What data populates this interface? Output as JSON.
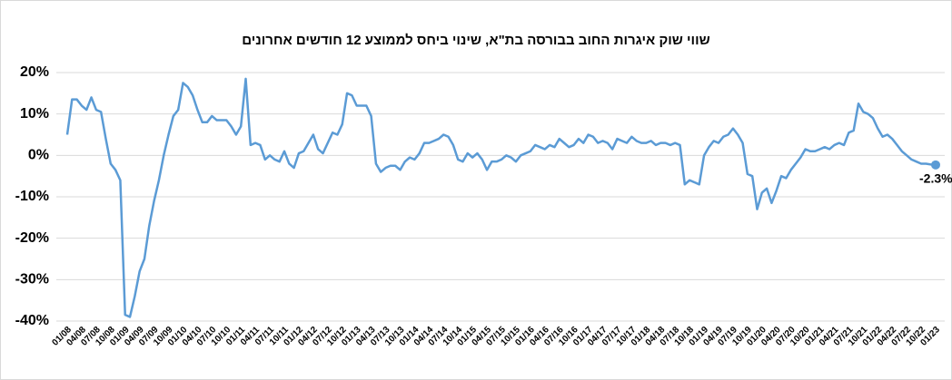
{
  "chart_data": {
    "type": "line",
    "title": "שווי שוק איגרות החוב בבורסה בת\"א, שינוי ביחס לממוצע 12 חודשים אחרונים",
    "categories": [
      "01/08",
      null,
      null,
      "04/08",
      null,
      null,
      "07/08",
      null,
      null,
      "10/08",
      null,
      null,
      "01/09",
      null,
      null,
      "04/09",
      null,
      null,
      "07/09",
      null,
      null,
      "10/09",
      null,
      null,
      "01/10",
      null,
      null,
      "04/10",
      null,
      null,
      "07/10",
      null,
      null,
      "10/10",
      null,
      null,
      "01/11",
      null,
      null,
      "04/11",
      null,
      null,
      "07/11",
      null,
      null,
      "10/11",
      null,
      null,
      "01/12",
      null,
      null,
      "04/12",
      null,
      null,
      "07/12",
      null,
      null,
      "10/12",
      null,
      null,
      "01/13",
      null,
      null,
      "04/13",
      null,
      null,
      "07/13",
      null,
      null,
      "10/13",
      null,
      null,
      "01/14",
      null,
      null,
      "04/14",
      null,
      null,
      "07/14",
      null,
      null,
      "10/14",
      null,
      null,
      "01/15",
      null,
      null,
      "04/15",
      null,
      null,
      "07/15",
      null,
      null,
      "10/15",
      null,
      null,
      "01/16",
      null,
      null,
      "04/16",
      null,
      null,
      "07/16",
      null,
      null,
      "10/16",
      null,
      null,
      "01/17",
      null,
      null,
      "04/17",
      null,
      null,
      "07/17",
      null,
      null,
      "10/17",
      null,
      null,
      "01/18",
      null,
      null,
      "04/18",
      null,
      null,
      "07/18",
      null,
      null,
      "10/18",
      null,
      null,
      "01/19",
      null,
      null,
      "04/19",
      null,
      null,
      "07/19",
      null,
      null,
      "10/19",
      null,
      null,
      "01/20",
      null,
      null,
      "04/20",
      null,
      null,
      "07/20",
      null,
      null,
      "10/20",
      null,
      null,
      "01/21",
      null,
      null,
      "04/21",
      null,
      null,
      "07/21",
      null,
      null,
      "10/21",
      null,
      null,
      "01/22",
      null,
      null,
      "04/22",
      null,
      null,
      "07/22",
      null,
      null,
      "10/22",
      null,
      null,
      "01/23"
    ],
    "values": [
      5,
      13.5,
      13.5,
      12,
      11,
      14,
      11,
      10.5,
      4,
      -2,
      -3.5,
      -6,
      -38.5,
      -39,
      -34,
      -28,
      -25,
      -17,
      -11,
      -6,
      0,
      5,
      9.5,
      11,
      17.5,
      16.5,
      14.5,
      11,
      8,
      8,
      9.5,
      8.5,
      8.5,
      8.5,
      7,
      5,
      7,
      18.5,
      2.5,
      3,
      2.5,
      -1,
      0,
      -1,
      -1.5,
      1,
      -2,
      -3,
      0.5,
      1,
      3,
      5,
      1.5,
      0.5,
      3,
      5.5,
      5,
      7.5,
      15,
      14.5,
      12,
      12,
      12,
      9.5,
      -2,
      -4,
      -3,
      -2.5,
      -2.5,
      -3.5,
      -1.5,
      -0.5,
      -1,
      0.5,
      3,
      3,
      3.5,
      4,
      5,
      4.5,
      2.5,
      -1,
      -1.5,
      0.5,
      -0.5,
      0.5,
      -1,
      -3.5,
      -1.5,
      -1.5,
      -1,
      0,
      -0.5,
      -1.5,
      0,
      0.5,
      1,
      2.5,
      2,
      1.5,
      2.5,
      2,
      4,
      3,
      2,
      2.5,
      4,
      3,
      5,
      4.5,
      3,
      3.5,
      3,
      1.5,
      4,
      3.5,
      3,
      4.5,
      3.5,
      3,
      3,
      3.5,
      2.5,
      3,
      3,
      2.5,
      3,
      2.5,
      -7,
      -6,
      -6.5,
      -7,
      0,
      2,
      3.5,
      3,
      4.5,
      5,
      6.5,
      5,
      3,
      -4.5,
      -5,
      -13,
      -9,
      -8,
      -11.5,
      -8.5,
      -5,
      -5.5,
      -3.5,
      -2,
      -0.5,
      1.5,
      1,
      1,
      1.5,
      2,
      1.5,
      2.5,
      3,
      2.5,
      5.5,
      6,
      12.5,
      10.5,
      10,
      9,
      6.5,
      4.5,
      5,
      4,
      2.5,
      1,
      0,
      -1,
      -1.5,
      -2,
      -2,
      -2.2,
      -2.3
    ],
    "value_labels": [
      null,
      null,
      null,
      null,
      null,
      null,
      null,
      null,
      null,
      null,
      null,
      null,
      null,
      null,
      null,
      null,
      null,
      null,
      null,
      null,
      null,
      null,
      null,
      null,
      null,
      null,
      null,
      null,
      null,
      null,
      null,
      null,
      null,
      null,
      null,
      null,
      null,
      null,
      null,
      null,
      null,
      null,
      null,
      null,
      null,
      null,
      null,
      null,
      null,
      null,
      null,
      null,
      null,
      null,
      null,
      null,
      null,
      null,
      null,
      null,
      null,
      null,
      null,
      null,
      null,
      null,
      null,
      null,
      null,
      null,
      null,
      null,
      null,
      null,
      null,
      null,
      null,
      null,
      null,
      null,
      null,
      null,
      null,
      null,
      null,
      null,
      null,
      null,
      null,
      null,
      null,
      null,
      null,
      null,
      null,
      null,
      null,
      null,
      null,
      null,
      null,
      null,
      null,
      null,
      null,
      null,
      null,
      null,
      null,
      null,
      null,
      null,
      null,
      null,
      null,
      null,
      null,
      null,
      null,
      null,
      null,
      null,
      null,
      null,
      null,
      null,
      null,
      null,
      null,
      null,
      null,
      null,
      null,
      null,
      null,
      null,
      null,
      null,
      null,
      null,
      null,
      null,
      null,
      null,
      null,
      null,
      null,
      null,
      null,
      null,
      null,
      null,
      null,
      null,
      null,
      null,
      null,
      null,
      null,
      null,
      null,
      null,
      null,
      null,
      null,
      null,
      null,
      null,
      null,
      null,
      null,
      null,
      null,
      null,
      null,
      null,
      null,
      null,
      null,
      null,
      "-2.3%"
    ],
    "color": "#5b9bd5",
    "label_color": "#2e75b6",
    "ylim": [
      -40,
      20
    ],
    "yticks": [
      {
        "value": -40,
        "label": "-40%"
      },
      {
        "value": -30,
        "label": "-30%"
      },
      {
        "value": -20,
        "label": "-20%"
      },
      {
        "value": -10,
        "label": "-10%"
      },
      {
        "value": 0,
        "label": "0%"
      },
      {
        "value": 10,
        "label": "10%"
      },
      {
        "value": 20,
        "label": "20%"
      }
    ],
    "grid": true
  }
}
